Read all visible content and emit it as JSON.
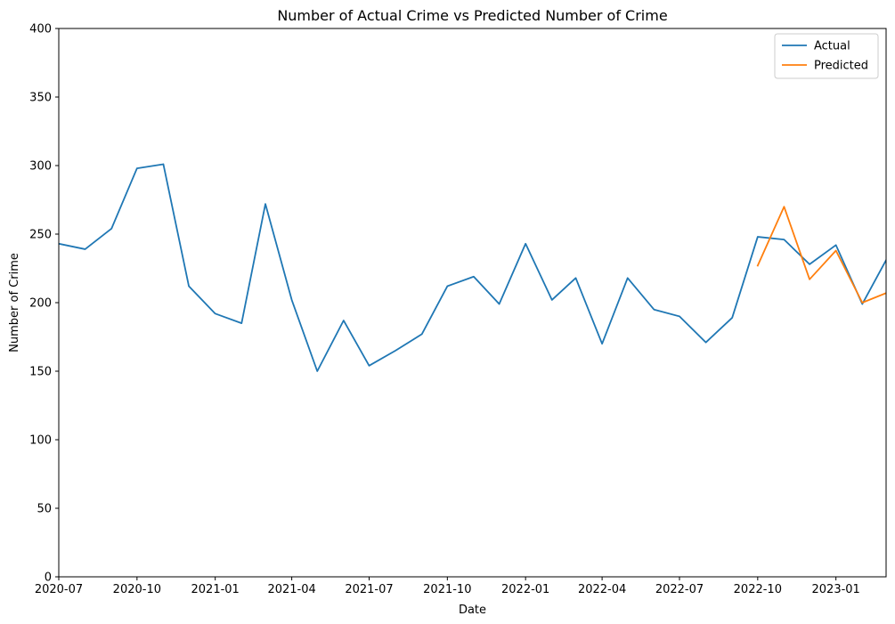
{
  "chart_data": {
    "type": "line",
    "title": "Number of Actual Crime vs Predicted Number of Crime",
    "xlabel": "Date",
    "ylabel": "Number of Crime",
    "ylim": [
      0,
      400
    ],
    "xlim": [
      "2020-07-01",
      "2023-03-01"
    ],
    "grid": false,
    "legend": "top-right",
    "x_ticks": [
      "2020-07",
      "2020-10",
      "2021-01",
      "2021-04",
      "2021-07",
      "2021-10",
      "2022-01",
      "2022-04",
      "2022-07",
      "2022-10",
      "2023-01"
    ],
    "y_ticks": [
      0,
      50,
      100,
      150,
      200,
      250,
      300,
      350,
      400
    ],
    "series": [
      {
        "name": "Actual",
        "color": "#1f77b4",
        "x": [
          "2020-07-01",
          "2020-08-01",
          "2020-09-01",
          "2020-10-01",
          "2020-11-01",
          "2020-12-01",
          "2021-01-01",
          "2021-02-01",
          "2021-03-01",
          "2021-04-01",
          "2021-05-01",
          "2021-06-01",
          "2021-07-01",
          "2021-08-01",
          "2021-09-01",
          "2021-10-01",
          "2021-11-01",
          "2021-12-01",
          "2022-01-01",
          "2022-02-01",
          "2022-03-01",
          "2022-04-01",
          "2022-05-01",
          "2022-06-01",
          "2022-07-01",
          "2022-08-01",
          "2022-09-01",
          "2022-10-01",
          "2022-11-01",
          "2022-12-01",
          "2023-01-01",
          "2023-02-01",
          "2023-03-01"
        ],
        "values": [
          243,
          239,
          254,
          298,
          301,
          212,
          192,
          185,
          272,
          202,
          150,
          187,
          154,
          165,
          177,
          212,
          219,
          199,
          243,
          202,
          218,
          170,
          218,
          195,
          190,
          171,
          189,
          248,
          246,
          228,
          242,
          199,
          231
        ]
      },
      {
        "name": "Predicted",
        "color": "#ff7f0e",
        "x": [
          "2022-10-01",
          "2022-11-01",
          "2022-12-01",
          "2023-01-01",
          "2023-02-01",
          "2023-03-01"
        ],
        "values": [
          227,
          270,
          217,
          238,
          200,
          207
        ]
      }
    ]
  }
}
